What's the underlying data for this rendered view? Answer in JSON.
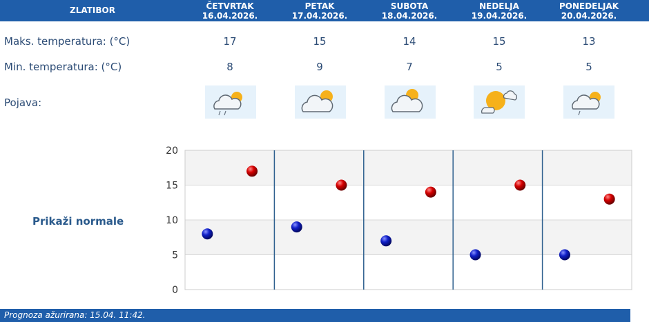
{
  "location": "ZLATIBOR",
  "days": [
    {
      "name": "ČETVRTAK",
      "date": "16.04.2026.",
      "max": "17",
      "min": "8",
      "icon": "cloud-sun-drizzle-icon"
    },
    {
      "name": "PETAK",
      "date": "17.04.2026.",
      "max": "15",
      "min": "9",
      "icon": "cloud-sun-icon"
    },
    {
      "name": "SUBOTA",
      "date": "18.04.2026.",
      "max": "14",
      "min": "7",
      "icon": "cloud-sun-icon"
    },
    {
      "name": "NEDELJA",
      "date": "19.04.2026.",
      "max": "15",
      "min": "5",
      "icon": "sun-cloud-icon"
    },
    {
      "name": "PONEDELJAK",
      "date": "20.04.2026.",
      "max": "13",
      "min": "5",
      "icon": "cloud-sun-drizzle-icon"
    }
  ],
  "labels": {
    "max": "Maks. temperatura: (°C)",
    "min": "Min. temperatura: (°C)",
    "phenomenon": "Pojava:"
  },
  "normals_link": "Prikaži normale",
  "footer": "Prognoza ažurirana:  15.04. 11:42.",
  "colors": {
    "header": "#1f5eaa",
    "max_point": "#cc0000",
    "min_point": "#0a14b0"
  },
  "chart_data": {
    "type": "scatter",
    "categories": [
      "16.04.2026.",
      "17.04.2026.",
      "18.04.2026.",
      "19.04.2026.",
      "20.04.2026."
    ],
    "series": [
      {
        "values": [
          17,
          15,
          14,
          15,
          13
        ]
      },
      {
        "values": [
          8,
          9,
          7,
          5,
          5
        ]
      }
    ],
    "ylim": [
      0,
      20
    ],
    "yticks": [
      "0",
      "5",
      "10",
      "15",
      "20"
    ],
    "grid": true
  }
}
